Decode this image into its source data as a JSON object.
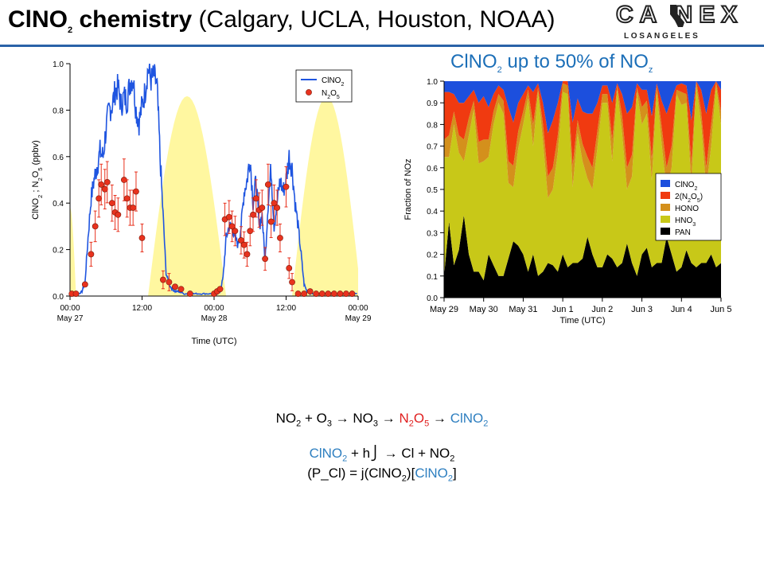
{
  "header": {
    "title_bold": "ClNO",
    "title_bold_sub": "2",
    "title_bold_rest": " chemistry",
    "title_rest": " (Calgary, UCLA, Houston, NOAA)",
    "logo_top": "CA  NEX",
    "logo_bottom": "L O S   A N G E L E S",
    "brand_color": "#2a62a8"
  },
  "subtitle": {
    "pre": "ClNO",
    "sub": "2",
    "mid": "  up to 50% of NO",
    "sub2": "z"
  },
  "chart_data": [
    {
      "type": "line",
      "xlabel": "Time (UTC)",
      "ylabel": "ClNO2 ; N2O5 (ppbv)",
      "ylim": [
        0,
        1.0
      ],
      "xlim_hours": [
        0,
        48
      ],
      "yticks": [
        "0.0",
        "0.2",
        "0.4",
        "0.6",
        "0.8",
        "1.0"
      ],
      "xticks": [
        {
          "h": 0,
          "l1": "00:00",
          "l2": "May 27"
        },
        {
          "h": 12,
          "l1": "12:00",
          "l2": ""
        },
        {
          "h": 24,
          "l1": "00:00",
          "l2": "May 28"
        },
        {
          "h": 36,
          "l1": "12:00",
          "l2": ""
        },
        {
          "h": 48,
          "l1": "00:00",
          "l2": "May 29"
        }
      ],
      "legend": [
        "ClNO2",
        "N2O5"
      ],
      "legend_placement": "top-right",
      "colors": {
        "clno2": "#1f55e0",
        "n2o5": "#e8321e",
        "daylight": "#fff7a0"
      },
      "daylight_peaks": [
        {
          "start": -1,
          "peak": -1,
          "end": 1,
          "value": 0.38
        },
        {
          "start": 13,
          "peak": 19.5,
          "end": 26,
          "value": 0.86
        },
        {
          "start": 37,
          "peak": 42.5,
          "end": 48.5,
          "value": 0.86
        }
      ],
      "series": [
        {
          "name": "ClNO2",
          "x": [
            0,
            0.5,
            1,
            1.5,
            2,
            2.5,
            3,
            3.5,
            4,
            4.5,
            5,
            5.5,
            6,
            6.5,
            7,
            7.5,
            8,
            8.5,
            9,
            9.5,
            10,
            10.5,
            11,
            11.5,
            12,
            12.5,
            13,
            13.5,
            14,
            14.5,
            15,
            15.5,
            16,
            16.5,
            17,
            17.5,
            18,
            19,
            20,
            21,
            22,
            23,
            24,
            24.5,
            25,
            25.5,
            26,
            26.5,
            27,
            27.5,
            28,
            28.5,
            29,
            29.5,
            30,
            30.5,
            31,
            31.5,
            32,
            32.5,
            33,
            33.5,
            34,
            34.5,
            35,
            35.5,
            36,
            36.5,
            37,
            37.5,
            38,
            38.5,
            39,
            39.5,
            40,
            41,
            42,
            43,
            44,
            45,
            46,
            47,
            48
          ],
          "y": [
            0.01,
            0.01,
            0.01,
            0.01,
            0.02,
            0.06,
            0.25,
            0.42,
            0.5,
            0.56,
            0.62,
            0.6,
            0.72,
            0.8,
            0.82,
            0.88,
            0.9,
            0.82,
            0.86,
            0.84,
            0.92,
            0.94,
            0.8,
            0.75,
            0.82,
            0.88,
            0.98,
            0.93,
            0.95,
            0.9,
            0.6,
            0.35,
            0.1,
            0.05,
            0.03,
            0.02,
            0.02,
            0.01,
            0.01,
            0.01,
            0.01,
            0.01,
            0.01,
            0.01,
            0.02,
            0.08,
            0.25,
            0.3,
            0.3,
            0.25,
            0.22,
            0.3,
            0.45,
            0.5,
            0.6,
            0.4,
            0.5,
            0.3,
            0.35,
            0.15,
            0.4,
            0.55,
            0.3,
            0.4,
            0.5,
            0.45,
            0.5,
            0.6,
            0.55,
            0.4,
            0.3,
            0.18,
            0.05,
            0.02,
            0.01,
            0.01,
            0.01,
            0.01,
            0.01,
            0.01,
            0.01,
            0.01,
            0.01
          ]
        },
        {
          "name": "N2O5",
          "x": [
            0.3,
            1,
            2.5,
            3.5,
            4.2,
            4.8,
            5.2,
            5.8,
            6.2,
            7,
            7.5,
            8,
            9,
            9.5,
            10,
            10.5,
            11,
            12,
            15.5,
            16.5,
            17.5,
            18.5,
            20,
            24,
            24.5,
            25,
            25.8,
            26.5,
            27,
            27.5,
            28.5,
            29,
            29.5,
            30,
            30.5,
            31,
            31.5,
            32,
            32.5,
            33,
            33.5,
            34,
            34.5,
            35,
            36,
            36.5,
            37,
            38,
            39,
            40,
            41,
            42,
            43,
            44,
            45,
            46,
            47
          ],
          "y": [
            0.01,
            0.01,
            0.05,
            0.18,
            0.3,
            0.42,
            0.48,
            0.46,
            0.49,
            0.4,
            0.36,
            0.35,
            0.5,
            0.42,
            0.38,
            0.38,
            0.45,
            0.25,
            0.07,
            0.06,
            0.04,
            0.03,
            0.01,
            0.01,
            0.02,
            0.03,
            0.33,
            0.34,
            0.3,
            0.28,
            0.24,
            0.22,
            0.18,
            0.28,
            0.35,
            0.42,
            0.37,
            0.38,
            0.16,
            0.48,
            0.32,
            0.4,
            0.38,
            0.25,
            0.47,
            0.12,
            0.06,
            0.01,
            0.01,
            0.02,
            0.01,
            0.01,
            0.01,
            0.01,
            0.01,
            0.01,
            0.01
          ]
        }
      ]
    },
    {
      "type": "area",
      "xlabel": "Time (UTC)",
      "ylabel": "Fraction of NOz",
      "ylim": [
        0,
        1.0
      ],
      "yticks": [
        "0.0",
        "0.1",
        "0.2",
        "0.3",
        "0.4",
        "0.5",
        "0.6",
        "0.7",
        "0.8",
        "0.9",
        "1.0"
      ],
      "categories": [
        "May 29",
        "May 30",
        "May 31",
        "Jun 1",
        "Jun 2",
        "Jun 3",
        "Jun 4",
        "Jun 5"
      ],
      "legend": [
        "ClNO2",
        "2(N2O5)",
        "HONO",
        "HNO3",
        "PAN"
      ],
      "legend_placement": "center-right",
      "colors": [
        "#1c4fdd",
        "#f03a10",
        "#d4901c",
        "#c8c818",
        "#000000"
      ],
      "x": [
        0,
        0.125,
        0.25,
        0.375,
        0.5,
        0.625,
        0.75,
        0.875,
        1,
        1.125,
        1.25,
        1.375,
        1.5,
        1.625,
        1.75,
        1.875,
        2,
        2.125,
        2.25,
        2.375,
        2.5,
        2.625,
        2.75,
        2.875,
        3,
        3.125,
        3.25,
        3.375,
        3.5,
        3.625,
        3.75,
        3.875,
        4,
        4.125,
        4.25,
        4.375,
        4.5,
        4.625,
        4.75,
        4.875,
        5,
        5.125,
        5.25,
        5.375,
        5.5,
        5.625,
        5.75,
        5.875,
        6,
        6.125,
        6.25,
        6.375,
        6.5,
        6.625,
        6.75,
        6.875,
        7
      ],
      "series": [
        {
          "name": "PAN",
          "values": [
            0.1,
            0.35,
            0.15,
            0.22,
            0.38,
            0.2,
            0.12,
            0.12,
            0.08,
            0.2,
            0.15,
            0.1,
            0.1,
            0.18,
            0.26,
            0.24,
            0.2,
            0.12,
            0.2,
            0.1,
            0.12,
            0.16,
            0.15,
            0.12,
            0.2,
            0.14,
            0.16,
            0.16,
            0.18,
            0.28,
            0.2,
            0.14,
            0.14,
            0.2,
            0.18,
            0.14,
            0.16,
            0.25,
            0.16,
            0.1,
            0.2,
            0.23,
            0.14,
            0.16,
            0.16,
            0.28,
            0.2,
            0.12,
            0.14,
            0.22,
            0.16,
            0.14,
            0.16,
            0.16,
            0.2,
            0.14,
            0.16
          ]
        },
        {
          "name": "HNO3",
          "values": [
            0.55,
            0.3,
            0.65,
            0.45,
            0.25,
            0.55,
            0.75,
            0.5,
            0.55,
            0.45,
            0.65,
            0.8,
            0.75,
            0.35,
            0.25,
            0.45,
            0.6,
            0.8,
            0.5,
            0.85,
            0.6,
            0.3,
            0.35,
            0.55,
            0.75,
            0.8,
            0.35,
            0.6,
            0.45,
            0.27,
            0.3,
            0.55,
            0.76,
            0.7,
            0.45,
            0.82,
            0.6,
            0.25,
            0.4,
            0.85,
            0.6,
            0.62,
            0.4,
            0.8,
            0.55,
            0.22,
            0.4,
            0.82,
            0.75,
            0.68,
            0.36,
            0.84,
            0.64,
            0.34,
            0.5,
            0.84,
            0.64
          ]
        },
        {
          "name": "HONO",
          "values": [
            0.08,
            0.1,
            0.06,
            0.08,
            0.1,
            0.08,
            0.04,
            0.1,
            0.1,
            0.08,
            0.06,
            0.04,
            0.06,
            0.1,
            0.1,
            0.08,
            0.06,
            0.04,
            0.1,
            0.02,
            0.08,
            0.1,
            0.1,
            0.08,
            0.04,
            0.04,
            0.1,
            0.06,
            0.08,
            0.1,
            0.1,
            0.08,
            0.04,
            0.04,
            0.1,
            0.02,
            0.08,
            0.1,
            0.1,
            0.02,
            0.08,
            0.06,
            0.1,
            0.02,
            0.08,
            0.1,
            0.1,
            0.02,
            0.06,
            0.04,
            0.1,
            0.02,
            0.06,
            0.1,
            0.1,
            0.02,
            0.06
          ]
        },
        {
          "name": "2(N2O5)",
          "values": [
            0.22,
            0.2,
            0.08,
            0.15,
            0.17,
            0.1,
            0.05,
            0.18,
            0.2,
            0.15,
            0.08,
            0.04,
            0.05,
            0.25,
            0.2,
            0.13,
            0.08,
            0.02,
            0.15,
            0.02,
            0.1,
            0.2,
            0.22,
            0.15,
            0.01,
            0.02,
            0.2,
            0.1,
            0.15,
            0.2,
            0.25,
            0.13,
            0.04,
            0.04,
            0.17,
            0.01,
            0.1,
            0.25,
            0.22,
            0.02,
            0.08,
            0.05,
            0.2,
            0.01,
            0.12,
            0.25,
            0.22,
            0.02,
            0.04,
            0.04,
            0.2,
            0.0,
            0.1,
            0.25,
            0.16,
            0.0,
            0.1
          ]
        },
        {
          "name": "ClNO2",
          "values": [
            0.05,
            0.05,
            0.06,
            0.1,
            0.1,
            0.07,
            0.04,
            0.1,
            0.07,
            0.12,
            0.06,
            0.02,
            0.04,
            0.12,
            0.19,
            0.1,
            0.06,
            0.02,
            0.05,
            0.01,
            0.1,
            0.24,
            0.18,
            0.1,
            0.0,
            0.0,
            0.19,
            0.08,
            0.14,
            0.15,
            0.15,
            0.1,
            0.02,
            0.02,
            0.1,
            0.01,
            0.06,
            0.15,
            0.12,
            0.01,
            0.04,
            0.04,
            0.16,
            0.01,
            0.09,
            0.15,
            0.08,
            0.02,
            0.01,
            0.02,
            0.18,
            0.0,
            0.04,
            0.15,
            0.04,
            0.0,
            0.04
          ]
        }
      ]
    }
  ],
  "equations": {
    "line1": {
      "a": "NO",
      "a_sub": "2",
      "b": " + O",
      "b_sub": "3",
      "c": " → NO",
      "c_sub": "3",
      "d": " → ",
      "e": "N",
      "e_sub": "2",
      "f": "O",
      "f_sub": "5",
      "g": " → ",
      "h": "ClNO",
      "h_sub": "2"
    },
    "line2": {
      "a": "ClNO",
      "a_sub": "2",
      "b": " + h",
      "c": "⎭",
      "d": " → ",
      "e": "Cl + NO",
      "e_sub": "2"
    },
    "line3": {
      "a": "(P_Cl) = j(ClNO",
      "a_sub": "2",
      "b": ")[",
      "c": "ClNO",
      "c_sub": "2",
      "d": "]"
    }
  }
}
